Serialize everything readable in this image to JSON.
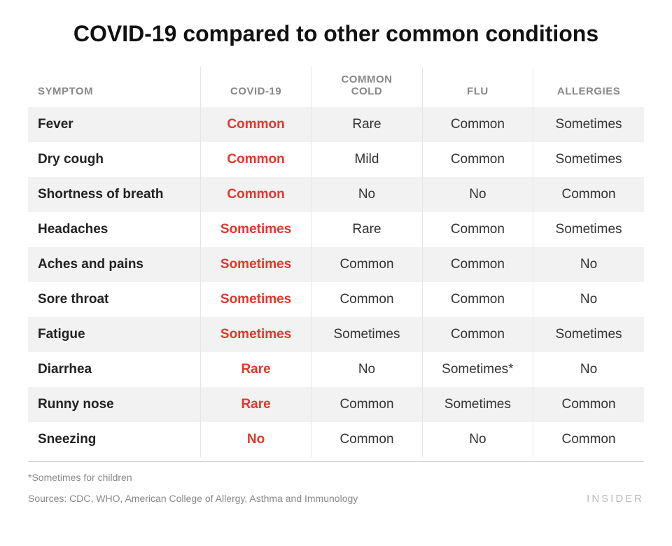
{
  "title": "COVID-19 compared to other common conditions",
  "colors": {
    "highlight": "#e6352b",
    "header_text": "#888888",
    "body_text": "#333333",
    "symptom_text": "#222222",
    "stripe_bg": "#f2f2f2",
    "border": "#e5e5e5",
    "footer_rule": "#d0d0d0",
    "brand": "#bbbbbb",
    "background": "#ffffff"
  },
  "table": {
    "type": "table",
    "col_widths_pct": [
      28,
      18,
      18,
      18,
      18
    ],
    "header_fontsize_pt": 11,
    "body_fontsize_pt": 14,
    "columns": [
      "SYMPTOM",
      "COVID-19",
      "COMMON COLD",
      "FLU",
      "ALLERGIES"
    ],
    "highlight_column_index": 1,
    "rows": [
      [
        "Fever",
        "Common",
        "Rare",
        "Common",
        "Sometimes"
      ],
      [
        "Dry cough",
        "Common",
        "Mild",
        "Common",
        "Sometimes"
      ],
      [
        "Shortness of breath",
        "Common",
        "No",
        "No",
        "Common"
      ],
      [
        "Headaches",
        "Sometimes",
        "Rare",
        "Common",
        "Sometimes"
      ],
      [
        "Aches and pains",
        "Sometimes",
        "Common",
        "Common",
        "No"
      ],
      [
        "Sore throat",
        "Sometimes",
        "Common",
        "Common",
        "No"
      ],
      [
        "Fatigue",
        "Sometimes",
        "Sometimes",
        "Common",
        "Sometimes"
      ],
      [
        "Diarrhea",
        "Rare",
        "No",
        "Sometimes*",
        "No"
      ],
      [
        "Runny nose",
        "Rare",
        "Common",
        "Sometimes",
        "Common"
      ],
      [
        "Sneezing",
        "No",
        "Common",
        "No",
        "Common"
      ]
    ]
  },
  "footnote": "*Sometimes for children",
  "sources_label": "Sources: ",
  "sources_text": "CDC, WHO,  American College of Allergy, Asthma and Immunology",
  "brand": "INSIDER",
  "title_fontsize_pt": 24,
  "footer_fontsize_pt": 10
}
